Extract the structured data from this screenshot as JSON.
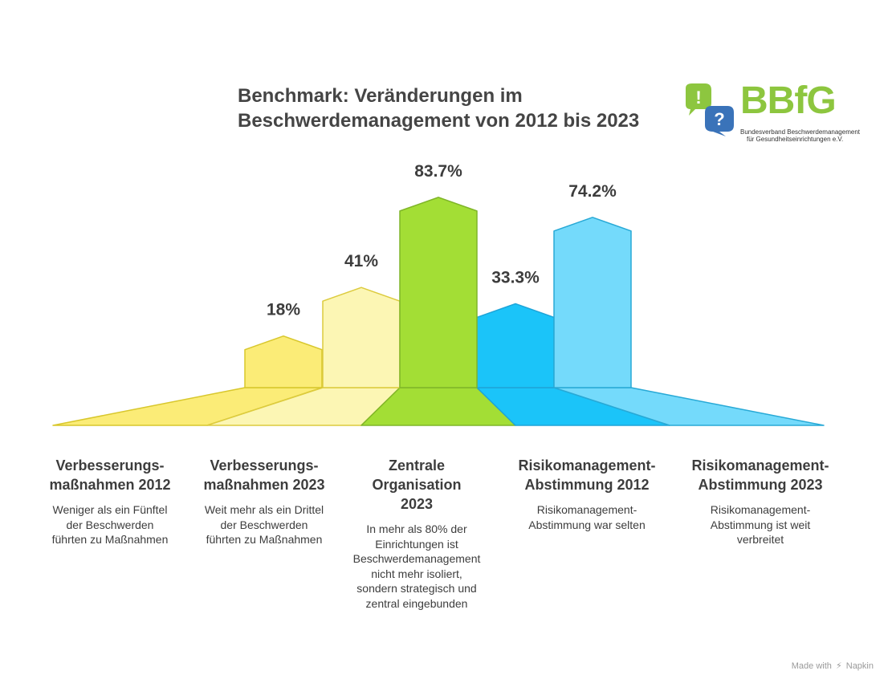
{
  "title": {
    "line1": "Benchmark: Veränderungen im",
    "line2": "Beschwerdemanagement von 2012 bis 2023"
  },
  "logo": {
    "text": "BBfG",
    "sub_line1": "Bundesverband Beschwerdemanagement",
    "sub_line2": "für Gesundheitseinrichtungen e.V.",
    "icon_excl": "!",
    "icon_q": "?",
    "color_green": "#8dc63f",
    "color_blue": "#3a73b9"
  },
  "chart_data": {
    "type": "bar",
    "categories": [
      "Verbesserungsmaßnahmen 2012",
      "Verbesserungsmaßnahmen 2023",
      "Zentrale Organisation 2023",
      "Risikomanagement-Abstimmung 2012",
      "Risikomanagement-Abstimmung 2023"
    ],
    "values": [
      18,
      41,
      83.7,
      33.3,
      74.2
    ],
    "value_labels": [
      "18%",
      "41%",
      "83.7%",
      "33.3%",
      "74.2%"
    ],
    "unit": "%",
    "colors": [
      "#fbec77",
      "#fcf6b4",
      "#a3de35",
      "#1bc4f9",
      "#74dafb"
    ],
    "stroke_colors": [
      "#d8c72c",
      "#dccb3e",
      "#7fb528",
      "#1ea4d8",
      "#28a9d6"
    ]
  },
  "items": [
    {
      "title1": "Verbesserungs-",
      "title2": "maßnahmen 2012",
      "title3": "",
      "desc": [
        "Weniger als ein Fünftel",
        "der Beschwerden",
        "führten zu Maßnahmen"
      ]
    },
    {
      "title1": "Verbesserungs-",
      "title2": "maßnahmen 2023",
      "title3": "",
      "desc": [
        "Weit mehr als ein Drittel",
        "der Beschwerden",
        "führten zu Maßnahmen"
      ]
    },
    {
      "title1": "Zentrale",
      "title2": "Organisation",
      "title3": "2023",
      "desc": [
        "In mehr als 80% der",
        "Einrichtungen ist",
        "Beschwerdemanagement",
        "nicht mehr isoliert,",
        "sondern strategisch und",
        "zentral eingebunden"
      ]
    },
    {
      "title1": "Risikomanagement-",
      "title2": "Abstimmung 2012",
      "title3": "",
      "desc": [
        "Risikomanagement-",
        "Abstimmung war selten"
      ]
    },
    {
      "title1": "Risikomanagement-",
      "title2": "Abstimmung 2023",
      "title3": "",
      "desc": [
        "Risikomanagement-",
        "Abstimmung ist weit",
        "verbreitet"
      ]
    }
  ],
  "footer": {
    "made_with": "Made with",
    "brand": "Napkin"
  }
}
